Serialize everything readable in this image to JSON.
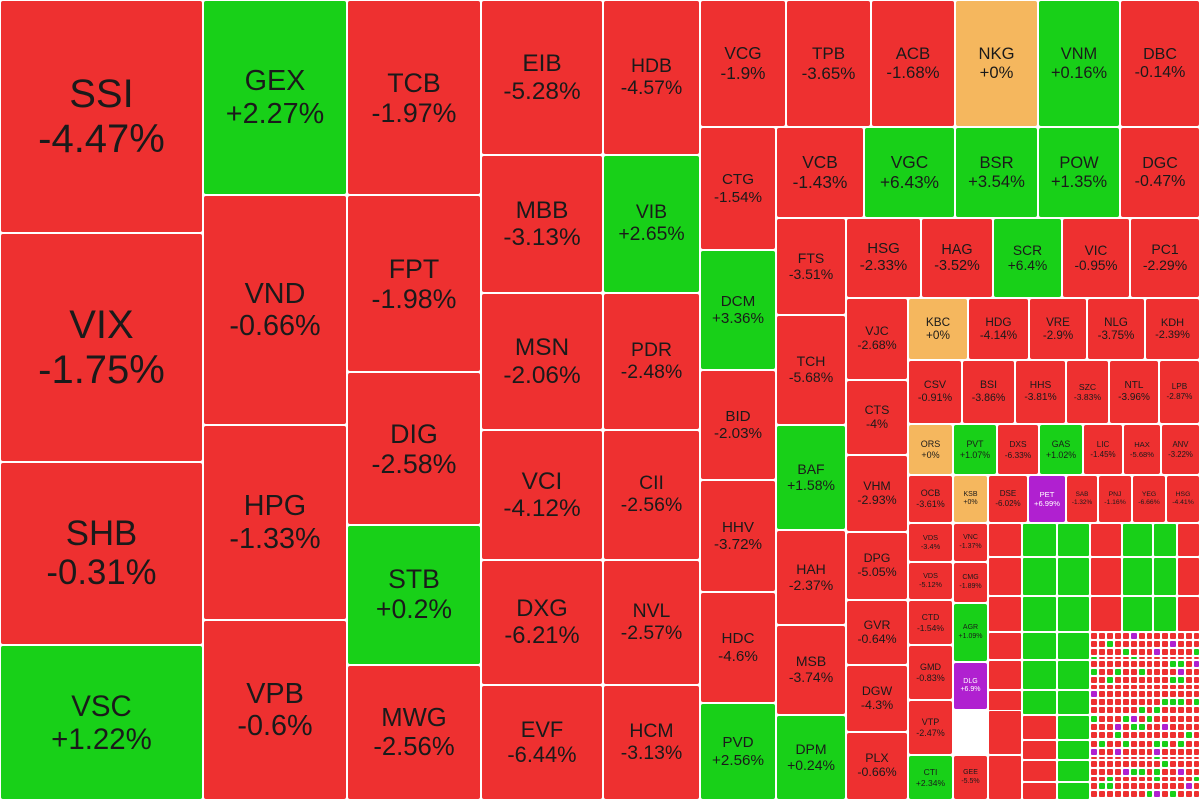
{
  "chart_data": {
    "type": "heatmap",
    "colors": {
      "down": "#ee3030",
      "up": "#18d018",
      "flat": "#f5b75e",
      "ceiling": "#b020d0"
    },
    "tiles": [
      {
        "ticker": "SSI",
        "change": "-4.47%",
        "status": "down"
      },
      {
        "ticker": "VIX",
        "change": "-1.75%",
        "status": "down"
      },
      {
        "ticker": "SHB",
        "change": "-0.31%",
        "status": "down"
      },
      {
        "ticker": "VSC",
        "change": "+1.22%",
        "status": "up"
      },
      {
        "ticker": "GEX",
        "change": "+2.27%",
        "status": "up"
      },
      {
        "ticker": "VND",
        "change": "-0.66%",
        "status": "down"
      },
      {
        "ticker": "HPG",
        "change": "-1.33%",
        "status": "down"
      },
      {
        "ticker": "VPB",
        "change": "-0.6%",
        "status": "down"
      },
      {
        "ticker": "TCB",
        "change": "-1.97%",
        "status": "down"
      },
      {
        "ticker": "FPT",
        "change": "-1.98%",
        "status": "down"
      },
      {
        "ticker": "DIG",
        "change": "-2.58%",
        "status": "down"
      },
      {
        "ticker": "STB",
        "change": "+0.2%",
        "status": "up"
      },
      {
        "ticker": "MWG",
        "change": "-2.56%",
        "status": "down"
      },
      {
        "ticker": "EIB",
        "change": "-5.28%",
        "status": "down"
      },
      {
        "ticker": "MBB",
        "change": "-3.13%",
        "status": "down"
      },
      {
        "ticker": "MSN",
        "change": "-2.06%",
        "status": "down"
      },
      {
        "ticker": "VCI",
        "change": "-4.12%",
        "status": "down"
      },
      {
        "ticker": "DXG",
        "change": "-6.21%",
        "status": "down"
      },
      {
        "ticker": "EVF",
        "change": "-6.44%",
        "status": "down"
      },
      {
        "ticker": "HDB",
        "change": "-4.57%",
        "status": "down"
      },
      {
        "ticker": "VIB",
        "change": "+2.65%",
        "status": "up"
      },
      {
        "ticker": "PDR",
        "change": "-2.48%",
        "status": "down"
      },
      {
        "ticker": "CII",
        "change": "-2.56%",
        "status": "down"
      },
      {
        "ticker": "NVL",
        "change": "-2.57%",
        "status": "down"
      },
      {
        "ticker": "HCM",
        "change": "-3.13%",
        "status": "down"
      },
      {
        "ticker": "VCG",
        "change": "-1.9%",
        "status": "down"
      },
      {
        "ticker": "CTG",
        "change": "-1.54%",
        "status": "down"
      },
      {
        "ticker": "DCM",
        "change": "+3.36%",
        "status": "up"
      },
      {
        "ticker": "BID",
        "change": "-2.03%",
        "status": "down"
      },
      {
        "ticker": "HHV",
        "change": "-3.72%",
        "status": "down"
      },
      {
        "ticker": "HDC",
        "change": "-4.6%",
        "status": "down"
      },
      {
        "ticker": "PVD",
        "change": "+2.56%",
        "status": "up"
      },
      {
        "ticker": "TPB",
        "change": "-3.65%",
        "status": "down"
      },
      {
        "ticker": "ACB",
        "change": "-1.68%",
        "status": "down"
      },
      {
        "ticker": "NKG",
        "change": "+0%",
        "status": "flat"
      },
      {
        "ticker": "VNM",
        "change": "+0.16%",
        "status": "up"
      },
      {
        "ticker": "DBC",
        "change": "-0.14%",
        "status": "down"
      },
      {
        "ticker": "VCB",
        "change": "-1.43%",
        "status": "down"
      },
      {
        "ticker": "VGC",
        "change": "+6.43%",
        "status": "up"
      },
      {
        "ticker": "BSR",
        "change": "+3.54%",
        "status": "up"
      },
      {
        "ticker": "POW",
        "change": "+1.35%",
        "status": "up"
      },
      {
        "ticker": "DGC",
        "change": "-0.47%",
        "status": "down"
      },
      {
        "ticker": "FTS",
        "change": "-3.51%",
        "status": "down"
      },
      {
        "ticker": "TCH",
        "change": "-5.68%",
        "status": "down"
      },
      {
        "ticker": "BAF",
        "change": "+1.58%",
        "status": "up"
      },
      {
        "ticker": "HAH",
        "change": "-2.37%",
        "status": "down"
      },
      {
        "ticker": "MSB",
        "change": "-3.74%",
        "status": "down"
      },
      {
        "ticker": "DPM",
        "change": "+0.24%",
        "status": "up"
      },
      {
        "ticker": "HSG",
        "change": "-2.33%",
        "status": "down"
      },
      {
        "ticker": "HAG",
        "change": "-3.52%",
        "status": "down"
      },
      {
        "ticker": "SCR",
        "change": "+6.4%",
        "status": "up"
      },
      {
        "ticker": "VIC",
        "change": "-0.95%",
        "status": "down"
      },
      {
        "ticker": "PC1",
        "change": "-2.29%",
        "status": "down"
      },
      {
        "ticker": "VJC",
        "change": "-2.68%",
        "status": "down"
      },
      {
        "ticker": "CTS",
        "change": "-4%",
        "status": "down"
      },
      {
        "ticker": "VHM",
        "change": "-2.93%",
        "status": "down"
      },
      {
        "ticker": "DPG",
        "change": "-5.05%",
        "status": "down"
      },
      {
        "ticker": "GVR",
        "change": "-0.64%",
        "status": "down"
      },
      {
        "ticker": "DGW",
        "change": "-4.3%",
        "status": "down"
      },
      {
        "ticker": "PLX",
        "change": "-0.66%",
        "status": "down"
      },
      {
        "ticker": "KBC",
        "change": "+0%",
        "status": "flat"
      },
      {
        "ticker": "HDG",
        "change": "-4.14%",
        "status": "down"
      },
      {
        "ticker": "VRE",
        "change": "-2.9%",
        "status": "down"
      },
      {
        "ticker": "NLG",
        "change": "-3.75%",
        "status": "down"
      },
      {
        "ticker": "KDH",
        "change": "-2.39%",
        "status": "down"
      },
      {
        "ticker": "CSV",
        "change": "-0.91%",
        "status": "down"
      },
      {
        "ticker": "BSI",
        "change": "-3.86%",
        "status": "down"
      },
      {
        "ticker": "HHS",
        "change": "-3.81%",
        "status": "down"
      },
      {
        "ticker": "SZC",
        "change": "-3.83%",
        "status": "down"
      },
      {
        "ticker": "NTL",
        "change": "-3.96%",
        "status": "down"
      },
      {
        "ticker": "LPB",
        "change": "-2.87%",
        "status": "down"
      },
      {
        "ticker": "ORS",
        "change": "+0%",
        "status": "flat"
      },
      {
        "ticker": "PVT",
        "change": "+1.07%",
        "status": "up"
      },
      {
        "ticker": "DXS",
        "change": "-6.33%",
        "status": "down"
      },
      {
        "ticker": "GAS",
        "change": "+1.02%",
        "status": "up"
      },
      {
        "ticker": "LIC",
        "change": "-1.45%",
        "status": "down"
      },
      {
        "ticker": "HAX",
        "change": "-5.68%",
        "status": "down"
      },
      {
        "ticker": "ANV",
        "change": "-3.22%",
        "status": "down"
      },
      {
        "ticker": "OCB",
        "change": "-3.61%",
        "status": "down"
      },
      {
        "ticker": "KSB",
        "change": "+0%",
        "status": "flat"
      },
      {
        "ticker": "DSE",
        "change": "-6.02%",
        "status": "down"
      },
      {
        "ticker": "PET",
        "change": "+6.99%",
        "status": "ceiling"
      },
      {
        "ticker": "SAB",
        "change": "-1.32%",
        "status": "down"
      },
      {
        "ticker": "PNJ",
        "change": "-1.16%",
        "status": "down"
      },
      {
        "ticker": "YEG",
        "change": "-6.66%",
        "status": "down"
      },
      {
        "ticker": "HSG",
        "change": "-4.41%",
        "status": "down"
      },
      {
        "ticker": "VDS",
        "change": "-3.4%",
        "status": "down"
      },
      {
        "ticker": "VDS",
        "change": "-5.12%",
        "status": "down"
      },
      {
        "ticker": "VNC",
        "change": "-1.37%",
        "status": "down"
      },
      {
        "ticker": "CTD",
        "change": "-1.54%",
        "status": "down"
      },
      {
        "ticker": "CMG",
        "change": "-1.89%",
        "status": "down"
      },
      {
        "ticker": "GMD",
        "change": "-0.83%",
        "status": "down"
      },
      {
        "ticker": "AGR",
        "change": "+1.09%",
        "status": "up"
      },
      {
        "ticker": "VTP",
        "change": "-2.47%",
        "status": "down"
      },
      {
        "ticker": "DLG",
        "change": "+6.9%",
        "status": "ceiling"
      },
      {
        "ticker": "CTI",
        "change": "+2.34%",
        "status": "up"
      },
      {
        "ticker": "GEE",
        "change": "-5.5%",
        "status": "down"
      }
    ]
  }
}
